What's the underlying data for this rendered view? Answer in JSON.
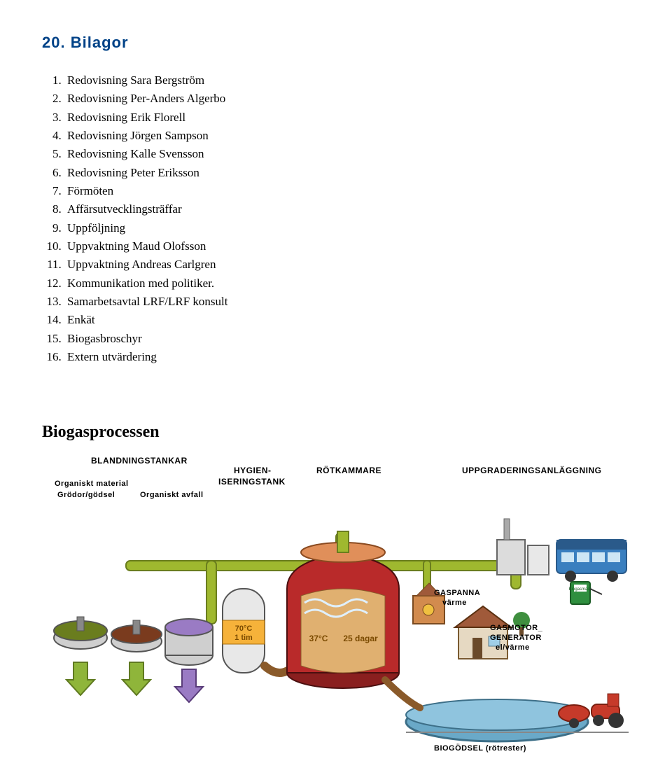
{
  "section": {
    "number": "20.",
    "title": "Bilagor"
  },
  "bilagor": [
    "Redovisning Sara Bergström",
    "Redovisning Per-Anders Algerbo",
    "Redovisning Erik Florell",
    "Redovisning Jörgen Sampson",
    "Redovisning Kalle Svensson",
    "Redovisning Peter Eriksson",
    "Förmöten",
    "Affärsutvecklingsträffar",
    "Uppföljning",
    "Uppvaktning Maud Olofsson",
    "Uppvaktning Andreas Carlgren",
    "Kommunikation med politiker.",
    "Samarbetsavtal LRF/LRF konsult",
    "Enkät",
    "Biogasbroschyr",
    "Extern utvärdering"
  ],
  "process": {
    "title": "Biogasprocessen",
    "labels": {
      "blandningstankar": "BLANDNINGSTANKAR",
      "organiskt_material": "Organiskt material",
      "grodor_godsel": "Grödor/gödsel",
      "organiskt_avfall": "Organiskt avfall",
      "hygien": "HYGIEN-",
      "iseringstank": "ISERINGSTANK",
      "rotkammare": "RÖTKAMMARE",
      "uppgradering": "UPPGRADERINGSANLÄGGNING",
      "gaspanna": "GASPANNA",
      "varme": "värme",
      "gasmotor": "GASMOTOR_",
      "generator": "GENERATOR",
      "el_varme": "el/värme",
      "biogodsel": "BIOGÖDSEL (rötrester)",
      "tank_temp": "70°C",
      "tank_time": "1 tim",
      "rot_temp": "37°C",
      "rot_days": "25 dagar",
      "biogasmack": "Biogasmack"
    },
    "colors": {
      "pipe_green": "#9fb82f",
      "pipe_outline": "#6a7d1e",
      "tank_grey": "#cfcfcf",
      "tank_outline": "#555",
      "hygien_body": "#e8e8e8",
      "hygien_band": "#f6b23a",
      "rot_red": "#b92a2a",
      "rot_dark": "#8a1f1f",
      "rot_roof": "#e08f5a",
      "arrow_green": "#8fb53a",
      "arrow_border": "#5f7a20",
      "gaspanna": "#d28b4e",
      "house_wall": "#e6d9c2",
      "house_roof": "#a05a3a",
      "storage_blue": "#6aa9c8",
      "storage_rim": "#3d6f88",
      "tractor_red": "#c63a2a",
      "bus_blue": "#3a7fbf",
      "bus_dark": "#2a5a8a",
      "mack_green": "#2f8f3f",
      "ground": "#888"
    }
  }
}
